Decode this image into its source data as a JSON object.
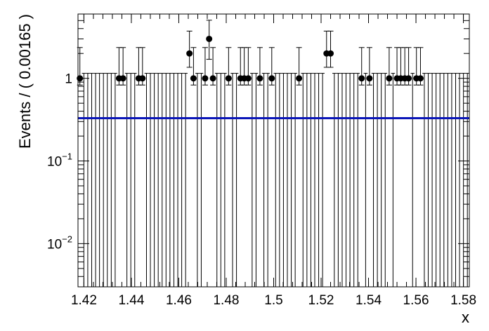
{
  "chart_data": {
    "type": "scatter",
    "title": "",
    "xlabel": "x",
    "ylabel": "Events / ( 0.00165 )",
    "xlim": [
      1.4175,
      1.5825
    ],
    "ylim": [
      0.003,
      6.0
    ],
    "yscale": "log",
    "grid": false,
    "x_ticks": [
      {
        "value": 1.42,
        "label": "1.42"
      },
      {
        "value": 1.44,
        "label": "1.44"
      },
      {
        "value": 1.46,
        "label": "1.46"
      },
      {
        "value": 1.48,
        "label": "1.48"
      },
      {
        "value": 1.5,
        "label": "1.5"
      },
      {
        "value": 1.52,
        "label": "1.52"
      },
      {
        "value": 1.54,
        "label": "1.54"
      },
      {
        "value": 1.56,
        "label": "1.56"
      },
      {
        "value": 1.58,
        "label": "1.58"
      }
    ],
    "y_ticks": [
      {
        "value": 1,
        "base": "1",
        "exp": ""
      },
      {
        "value": 0.1,
        "base": "10",
        "exp": "−1"
      },
      {
        "value": 0.01,
        "base": "10",
        "exp": "−2"
      }
    ],
    "bin_width": 0.00165,
    "bins_start": 1.4175,
    "bin_count": 100,
    "empty_bin_error": 1.15,
    "series": [
      {
        "type": "points",
        "points": [
          {
            "x": 1.4183,
            "y": 1
          },
          {
            "x": 1.4348,
            "y": 1
          },
          {
            "x": 1.4365,
            "y": 1
          },
          {
            "x": 1.4431,
            "y": 1
          },
          {
            "x": 1.4447,
            "y": 1
          },
          {
            "x": 1.4645,
            "y": 2
          },
          {
            "x": 1.4662,
            "y": 1
          },
          {
            "x": 1.4711,
            "y": 1
          },
          {
            "x": 1.4728,
            "y": 3
          },
          {
            "x": 1.4744,
            "y": 1
          },
          {
            "x": 1.481,
            "y": 1
          },
          {
            "x": 1.486,
            "y": 1
          },
          {
            "x": 1.4876,
            "y": 1
          },
          {
            "x": 1.4893,
            "y": 1
          },
          {
            "x": 1.4942,
            "y": 1
          },
          {
            "x": 1.4992,
            "y": 1
          },
          {
            "x": 1.5107,
            "y": 1
          },
          {
            "x": 1.5223,
            "y": 2
          },
          {
            "x": 1.524,
            "y": 2
          },
          {
            "x": 1.5371,
            "y": 1
          },
          {
            "x": 1.5404,
            "y": 1
          },
          {
            "x": 1.5487,
            "y": 1
          },
          {
            "x": 1.552,
            "y": 1
          },
          {
            "x": 1.5536,
            "y": 1
          },
          {
            "x": 1.5553,
            "y": 1
          },
          {
            "x": 1.5569,
            "y": 1
          },
          {
            "x": 1.5602,
            "y": 1
          },
          {
            "x": 1.5619,
            "y": 1
          }
        ],
        "errors": {
          "0": [
            0.17,
            3.3
          ],
          "1": [
            0.17,
            3.3
          ],
          "2": [
            0.17,
            3.3
          ],
          "3": [
            0.17,
            3.3
          ]
        },
        "marker_color": "#000000"
      },
      {
        "type": "line",
        "x": [
          1.4175,
          1.5825
        ],
        "y": [
          0.33,
          0.33
        ],
        "color": "#0b16b8"
      }
    ]
  }
}
